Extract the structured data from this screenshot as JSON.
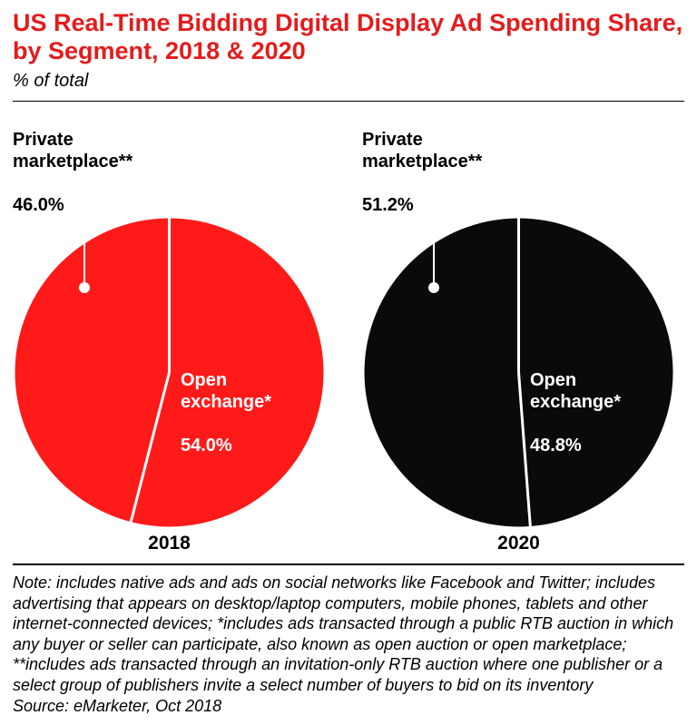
{
  "title": "US Real-Time Bidding Digital Display Ad Spending Share, by Segment, 2018 & 2020",
  "title_color": "#e41c1c",
  "subtitle": "% of total",
  "charts": [
    {
      "year": "2018",
      "fill_color": "#ff1a1a",
      "slices": [
        {
          "label": "Private\nmarketplace**",
          "value": 46.0,
          "pct_text": "46.0%"
        },
        {
          "label": "Open\nexchange*",
          "value": 54.0,
          "pct_text": "54.0%"
        }
      ]
    },
    {
      "year": "2020",
      "fill_color": "#0a0a0a",
      "slices": [
        {
          "label": "Private\nmarketplace**",
          "value": 51.2,
          "pct_text": "51.2%"
        },
        {
          "label": "Open\nexchange*",
          "value": 48.8,
          "pct_text": "48.8%"
        }
      ]
    }
  ],
  "pie": {
    "radius": 170,
    "divider_color": "#ffffff",
    "divider_width": 3,
    "callout_line_color": "#ffffff",
    "callout_dot_radius": 6,
    "callout_line_width": 2,
    "background": "#ffffff"
  },
  "typography": {
    "title_fontsize": 27,
    "subtitle_fontsize": 20,
    "segment_label_fontsize": 20,
    "year_fontsize": 21,
    "note_fontsize": 18
  },
  "note": "Note: includes native ads and ads on social networks like Facebook and Twitter; includes advertising that appears on desktop/laptop computers, mobile phones, tablets and other internet-connected devices; *includes ads transacted through a public RTB auction in which any buyer or seller can participate, also known as open auction or open marketplace; **includes ads transacted through an invitation-only RTB auction where one publisher or a select group of publishers invite a select number of buyers to bid on its inventory",
  "source": "Source: eMarketer, Oct 2018"
}
